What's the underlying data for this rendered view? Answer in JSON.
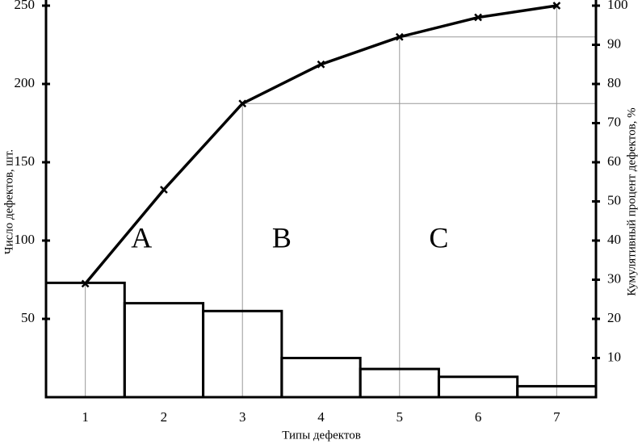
{
  "chart_data": {
    "type": "pareto",
    "categories": [
      "1",
      "2",
      "3",
      "4",
      "5",
      "6",
      "7"
    ],
    "x_label": "Типы дефектов",
    "y_label": "Число дефектов, шт.",
    "y2_label": "Кумулятивный процент дефектов, %",
    "series": [
      {
        "name": "Число дефектов",
        "color": "#000000",
        "values": [
          73,
          60,
          55,
          25,
          18,
          13,
          7
        ]
      },
      {
        "name": "Кумулятивный процент",
        "color": "#000000",
        "axis": "y2",
        "values": [
          29,
          53,
          75,
          85,
          92,
          97,
          100
        ]
      }
    ],
    "ylim": [
      0,
      250
    ],
    "yticks": [
      50,
      100,
      150,
      200,
      250
    ],
    "y2lim": [
      0,
      100
    ],
    "y2ticks": [
      10,
      20,
      30,
      40,
      50,
      60,
      70,
      80,
      90,
      100
    ],
    "annotations": [
      "A",
      "B",
      "C"
    ]
  }
}
